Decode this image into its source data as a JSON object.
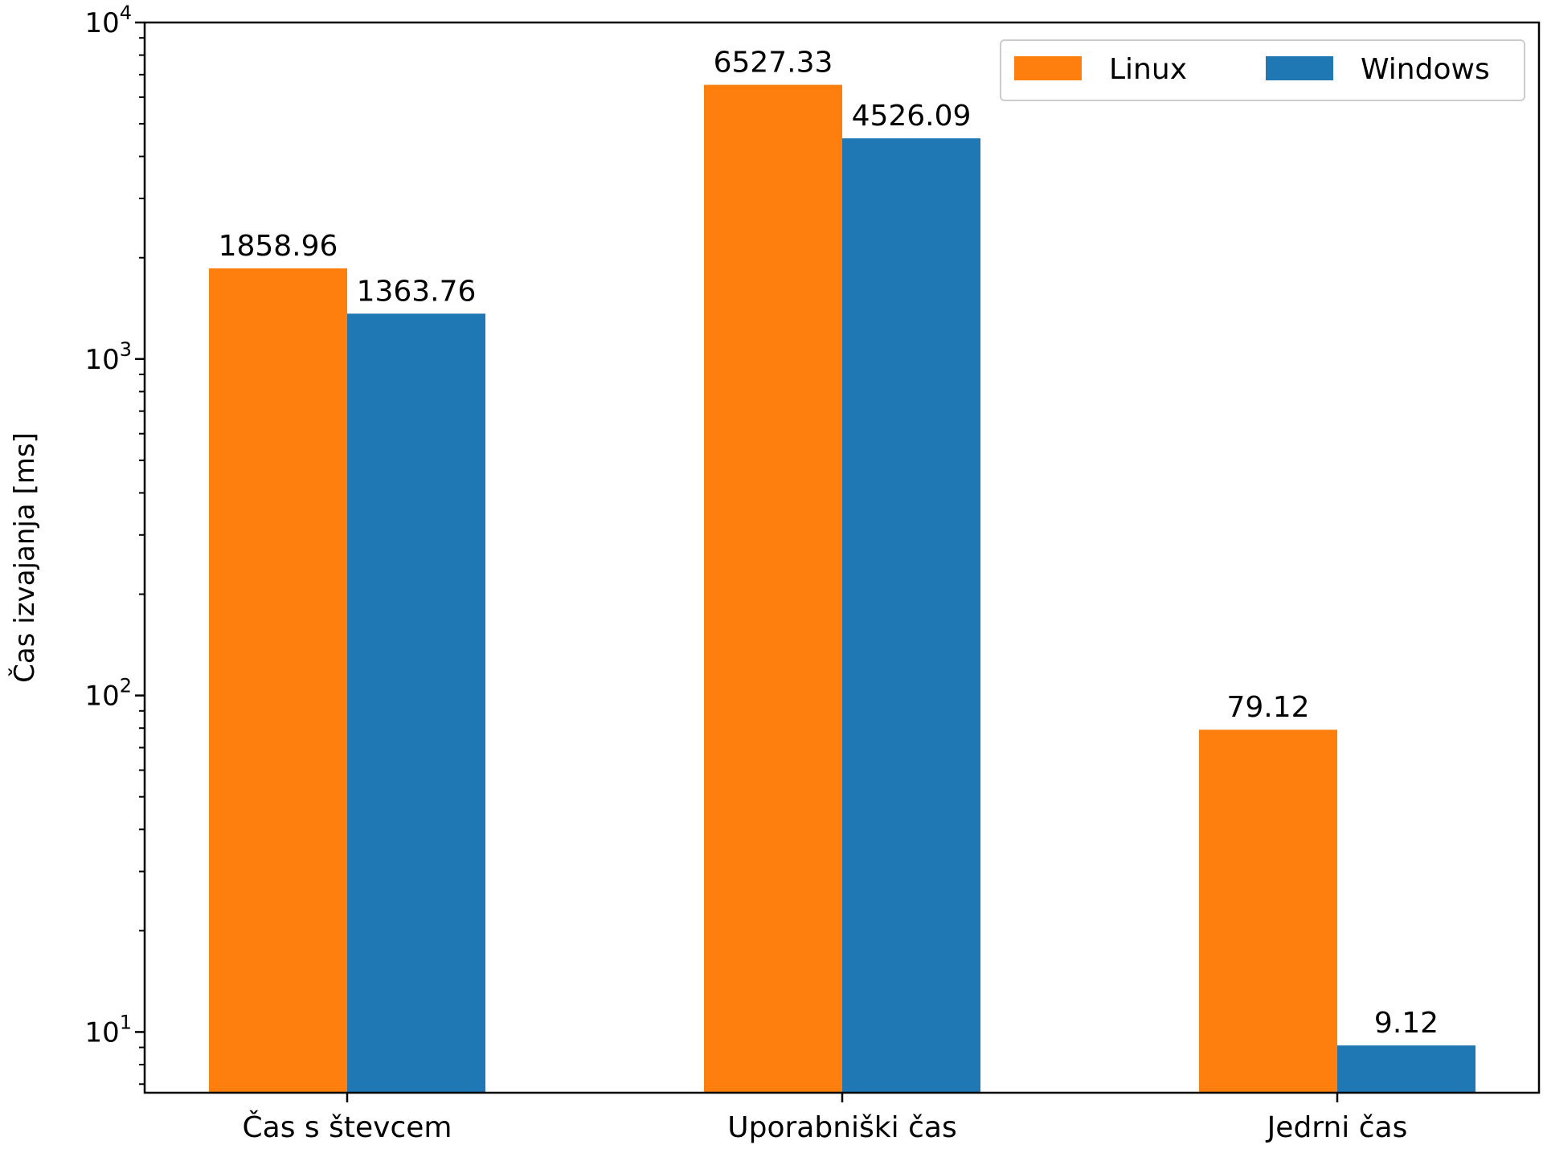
{
  "chart_data": {
    "type": "bar",
    "scale": "log",
    "title": "",
    "xlabel": "",
    "ylabel": "Čas izvajanja [ms]",
    "categories": [
      "Čas s števcem",
      "Uporabniški čas",
      "Jedrni čas"
    ],
    "series": [
      {
        "name": "Linux",
        "color": "#ff7f0e",
        "values": [
          1858.96,
          6527.33,
          79.12
        ],
        "value_labels": [
          "1858.96",
          "6527.33",
          "79.12"
        ]
      },
      {
        "name": "Windows",
        "color": "#1f77b4",
        "values": [
          1363.76,
          4526.09,
          9.12
        ],
        "value_labels": [
          "1363.76",
          "4526.09",
          "9.12"
        ]
      }
    ],
    "ylim": [
      6.6,
      10000
    ],
    "major_ticks": [
      {
        "value": 10,
        "base": "10",
        "exp": "1"
      },
      {
        "value": 100,
        "base": "10",
        "exp": "2"
      },
      {
        "value": 1000,
        "base": "10",
        "exp": "3"
      },
      {
        "value": 10000,
        "base": "10",
        "exp": "4"
      }
    ],
    "legend_position": "top-right",
    "grid": false
  }
}
